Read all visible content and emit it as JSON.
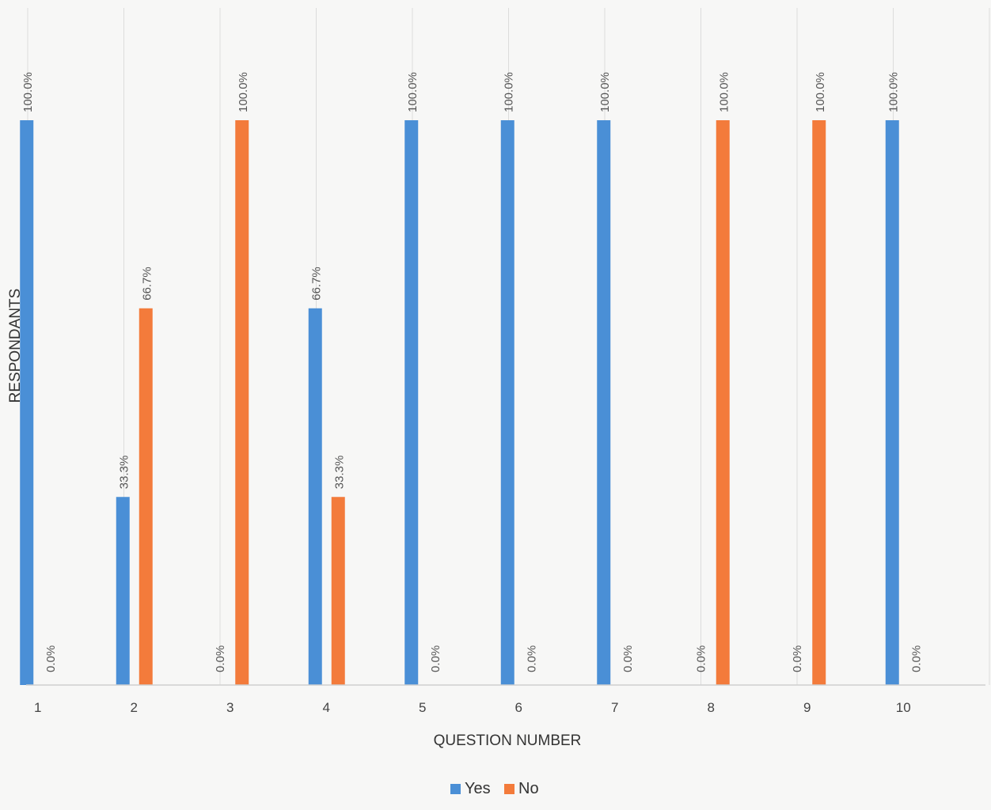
{
  "chart_data": {
    "type": "bar",
    "xlabel": "QUESTION NUMBER",
    "ylabel": "RESPONDANTS",
    "categories": [
      "1",
      "2",
      "3",
      "4",
      "5",
      "6",
      "7",
      "8",
      "9",
      "10"
    ],
    "series": [
      {
        "name": "Yes",
        "color": "#4a8fd6",
        "values": [
          100.0,
          33.3,
          0.0,
          66.7,
          100.0,
          100.0,
          100.0,
          0.0,
          0.0,
          100.0
        ],
        "labels": [
          "100.0%",
          "33.3%",
          "0.0%",
          "66.7%",
          "100.0%",
          "100.0%",
          "100.0%",
          "0.0%",
          "0.0%",
          "100.0%"
        ]
      },
      {
        "name": "No",
        "color": "#f37b3b",
        "values": [
          0.0,
          66.7,
          100.0,
          33.3,
          0.0,
          0.0,
          0.0,
          100.0,
          100.0,
          0.0
        ],
        "labels": [
          "0.0%",
          "66.7%",
          "100.0%",
          "33.3%",
          "0.0%",
          "0.0%",
          "0.0%",
          "100.0%",
          "100.0%",
          "0.0%"
        ]
      }
    ],
    "ylim": [
      0,
      100
    ],
    "grid": "vertical",
    "legend": "bottom"
  }
}
